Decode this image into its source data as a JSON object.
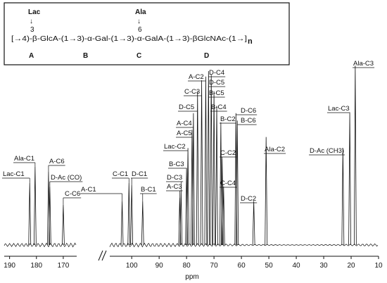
{
  "structure": {
    "substituent_1": "Lac",
    "arrow_1": "↓",
    "position_1": "3",
    "substituent_2": "Ala",
    "arrow_2": "↓",
    "position_2": "6",
    "formula": "[→4)-β-GlcA-(1→3)-α-Gal-(1→3)-α-GalA-(1→3)-βGlcNAc-(1→]",
    "subscript": "n",
    "residues": [
      "A",
      "B",
      "C",
      "D"
    ]
  },
  "chart_data": {
    "type": "spectrum",
    "x_label": "ppm",
    "color": "#111111",
    "segments": [
      {
        "xlim": [
          192,
          165
        ],
        "xticks": [
          190,
          180,
          170
        ]
      },
      {
        "xlim": [
          108,
          10
        ],
        "xticks": [
          100,
          90,
          80,
          70,
          60,
          50,
          40,
          30,
          20,
          10
        ]
      }
    ],
    "ylim": [
      0,
      100
    ],
    "peaks": [
      {
        "label": "Lac-C1",
        "ppm": 182.5,
        "height": 34
      },
      {
        "label": "Ala-C1",
        "ppm": 180.5,
        "height": 43
      },
      {
        "label": "A-C6",
        "ppm": 175.5,
        "height": 40
      },
      {
        "label": "D-Ac (CO)",
        "ppm": 175,
        "height": 32
      },
      {
        "label": "C-C6",
        "ppm": 170,
        "height": 22
      },
      {
        "label": "A-C1",
        "ppm": 103.5,
        "height": 24
      },
      {
        "label": "C-C1",
        "ppm": 101,
        "height": 34
      },
      {
        "label": "D-C1",
        "ppm": 100,
        "height": 33
      },
      {
        "label": "B-C1",
        "ppm": 96,
        "height": 24
      },
      {
        "label": "A-C3",
        "ppm": 82.5,
        "height": 26
      },
      {
        "label": "D-C3",
        "ppm": 82,
        "height": 30
      },
      {
        "label": "B-C3",
        "ppm": 80,
        "height": 42
      },
      {
        "label": "Lac-C2",
        "ppm": 79.5,
        "height": 53
      },
      {
        "label": "A-C5",
        "ppm": 78,
        "height": 63
      },
      {
        "label": "A-C4",
        "ppm": 77.5,
        "height": 72
      },
      {
        "label": "D-C5",
        "ppm": 76,
        "height": 84
      },
      {
        "label": "C-C3",
        "ppm": 74.5,
        "height": 90
      },
      {
        "label": "A-C2",
        "ppm": 73,
        "height": 92
      },
      {
        "label": "D-C4",
        "ppm": 72,
        "height": 95
      },
      {
        "label": "D-C5",
        "ppm": 71,
        "height": 93
      },
      {
        "label": "B-C5",
        "ppm": 70,
        "height": 84
      },
      {
        "label": "B-C4",
        "ppm": 69,
        "height": 76
      },
      {
        "label": "B-C2",
        "ppm": 67.5,
        "height": 67
      },
      {
        "label": "C-C2",
        "ppm": 67,
        "height": 47
      },
      {
        "label": "C-C4",
        "ppm": 66.5,
        "height": 32
      },
      {
        "label": "D-C6",
        "ppm": 62,
        "height": 72
      },
      {
        "label": "B-C6",
        "ppm": 61.5,
        "height": 68
      },
      {
        "label": "D-C2",
        "ppm": 55.5,
        "height": 24
      },
      {
        "label": "Ala-C2",
        "ppm": 51,
        "height": 59
      },
      {
        "label": "D-Ac (CH3)",
        "ppm": 23,
        "height": 53
      },
      {
        "label": "Lac-C3",
        "ppm": 20.5,
        "height": 72
      },
      {
        "label": "Ala-C3",
        "ppm": 18.5,
        "height": 98
      }
    ]
  }
}
